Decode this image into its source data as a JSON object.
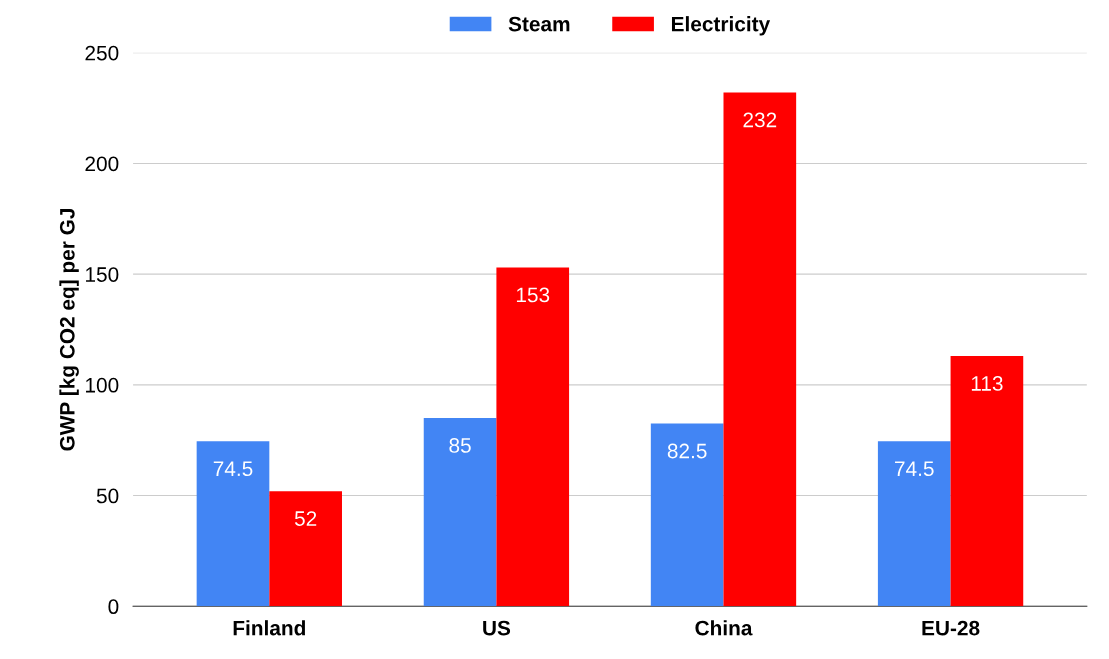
{
  "chart_data": {
    "type": "bar",
    "ylabel": "GWP [kg CO2 eq] per GJ",
    "categories": [
      "Finland",
      "US",
      "China",
      "EU-28"
    ],
    "series": [
      {
        "name": "Steam",
        "color": "#4285f4",
        "values": [
          74.5,
          85,
          82.5,
          74.5
        ]
      },
      {
        "name": "Electricity",
        "color": "#ff0000",
        "values": [
          52,
          153,
          232,
          113
        ]
      }
    ],
    "ylim": [
      0,
      250
    ],
    "yticks": [
      0,
      50,
      100,
      150,
      200,
      250
    ],
    "grid": "y",
    "legend": "top",
    "data_labels": true
  }
}
